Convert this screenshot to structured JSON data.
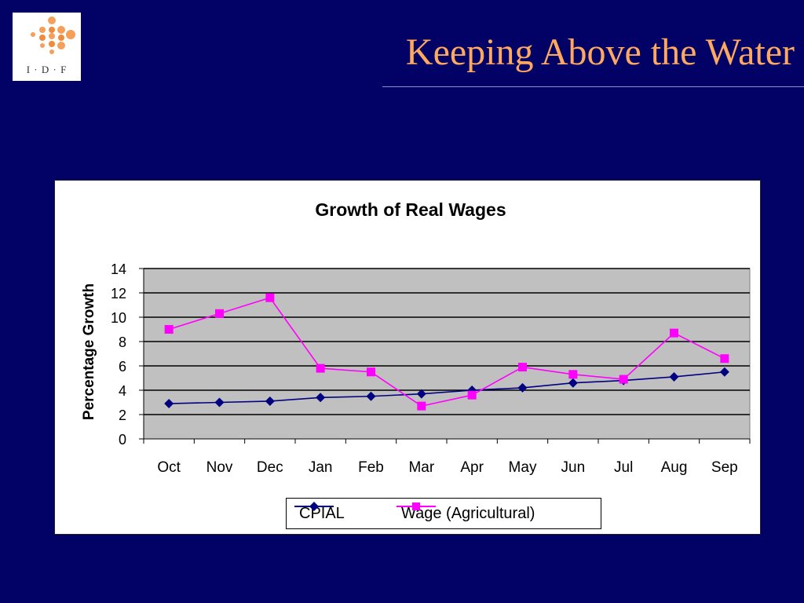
{
  "logo": {
    "text": "I · D · F"
  },
  "slide": {
    "title": "Keeping Above the Water"
  },
  "colors": {
    "background": "#020266",
    "title": "#ffa860",
    "cpial": "#000080",
    "wage": "#ff00ff",
    "plot_area": "#c0c0c0"
  },
  "chart_data": {
    "type": "line",
    "title": "Growth of Real Wages",
    "xlabel": "",
    "ylabel": "Percentage Growth",
    "categories": [
      "Oct",
      "Nov",
      "Dec",
      "Jan",
      "Feb",
      "Mar",
      "Apr",
      "May",
      "Jun",
      "Jul",
      "Aug",
      "Sep"
    ],
    "ylim": [
      0,
      14
    ],
    "yticks": [
      "0",
      "2",
      "4",
      "6",
      "8",
      "10",
      "12",
      "14"
    ],
    "grid": true,
    "legend_position": "bottom",
    "series": [
      {
        "name": "CPIAL",
        "marker": "diamond",
        "color": "#000080",
        "values": [
          2.9,
          3.0,
          3.1,
          3.4,
          3.5,
          3.7,
          4.0,
          4.2,
          4.6,
          4.8,
          5.1,
          5.5
        ]
      },
      {
        "name": "Wage (Agricultural)",
        "marker": "square",
        "color": "#ff00ff",
        "values": [
          9.0,
          10.3,
          11.6,
          5.8,
          5.5,
          2.7,
          3.6,
          5.9,
          5.3,
          4.9,
          8.7,
          6.6
        ]
      }
    ]
  }
}
